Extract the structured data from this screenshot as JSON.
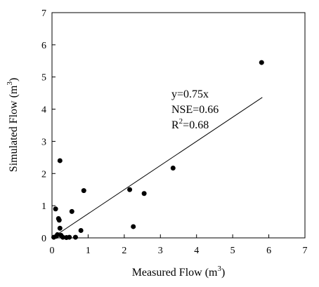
{
  "chart_data": {
    "type": "scatter",
    "xlabel": "Measured Flow (m",
    "xlabel_sup": "3",
    "xlabel_close": ")",
    "ylabel": "Simulated Flow (m",
    "ylabel_sup": "3",
    "ylabel_close": ")",
    "xlim": [
      0,
      7
    ],
    "ylim": [
      0,
      7
    ],
    "xticks": [
      "0",
      "1",
      "2",
      "3",
      "4",
      "5",
      "6",
      "7"
    ],
    "yticks": [
      "0",
      "1",
      "2",
      "3",
      "4",
      "5",
      "6",
      "7"
    ],
    "grid": false,
    "points": [
      {
        "x": 0.05,
        "y": 0.02
      },
      {
        "x": 0.1,
        "y": 0.9
      },
      {
        "x": 0.12,
        "y": 0.05
      },
      {
        "x": 0.15,
        "y": 0.1
      },
      {
        "x": 0.18,
        "y": 0.6
      },
      {
        "x": 0.2,
        "y": 0.55
      },
      {
        "x": 0.22,
        "y": 2.4
      },
      {
        "x": 0.22,
        "y": 0.3
      },
      {
        "x": 0.25,
        "y": 0.08
      },
      {
        "x": 0.3,
        "y": 0.02
      },
      {
        "x": 0.4,
        "y": 0.01
      },
      {
        "x": 0.48,
        "y": 0.02
      },
      {
        "x": 0.55,
        "y": 0.82
      },
      {
        "x": 0.65,
        "y": 0.02
      },
      {
        "x": 0.8,
        "y": 0.23
      },
      {
        "x": 0.88,
        "y": 1.47
      },
      {
        "x": 2.15,
        "y": 1.5
      },
      {
        "x": 2.25,
        "y": 0.35
      },
      {
        "x": 2.55,
        "y": 1.38
      },
      {
        "x": 3.35,
        "y": 2.17
      },
      {
        "x": 5.8,
        "y": 5.45
      }
    ],
    "trendline": {
      "slope": 0.75,
      "x_start": 0,
      "x_end": 5.82
    },
    "annotations": {
      "line1": "y=0.75x",
      "line2": "NSE=0.66",
      "line3_prefix": "R",
      "line3_sup": "2",
      "line3_suffix": "=0.68"
    }
  }
}
